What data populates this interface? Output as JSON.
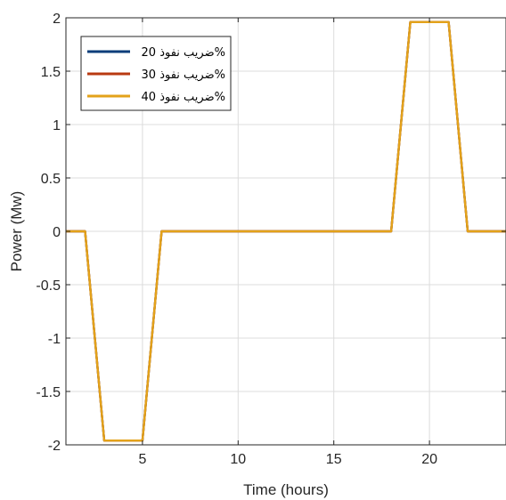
{
  "chart_data": {
    "type": "line",
    "title": "",
    "xlabel": "Time (hours)",
    "ylabel": "Power (Mw)",
    "xlim": [
      1,
      24
    ],
    "ylim": [
      -2,
      2
    ],
    "xticks": [
      5,
      10,
      15,
      20
    ],
    "xtick_labels": [
      "5",
      "10",
      "15",
      "20"
    ],
    "yticks": [
      -2,
      -1.5,
      -1,
      -0.5,
      0,
      0.5,
      1,
      1.5,
      2
    ],
    "ytick_labels": [
      "-2",
      "-1.5",
      "-1",
      "-0.5",
      "0",
      "0.5",
      "1",
      "1.5",
      "2"
    ],
    "grid": true,
    "legend_position": "top-left",
    "x": [
      1,
      2,
      3,
      4,
      5,
      6,
      7,
      8,
      9,
      10,
      11,
      12,
      13,
      14,
      15,
      16,
      17,
      18,
      19,
      20,
      21,
      22,
      23,
      24
    ],
    "series": [
      {
        "name": "ضريب نفوذ 20%",
        "color": "#0a3d7a",
        "values": [
          0,
          0,
          -1.96,
          -1.96,
          -1.96,
          0,
          0,
          0,
          0,
          0,
          0,
          0,
          0,
          0,
          0,
          0,
          0,
          0,
          1.96,
          1.96,
          1.96,
          0,
          0,
          0
        ]
      },
      {
        "name": "ضريب نفوذ 30%",
        "color": "#b83a12",
        "values": [
          0,
          0,
          -1.96,
          -1.96,
          -1.96,
          0,
          0,
          0,
          0,
          0,
          0,
          0,
          0,
          0,
          0,
          0,
          0,
          0,
          1.96,
          1.96,
          1.96,
          0,
          0,
          0
        ]
      },
      {
        "name": "ضريب نفوذ 40%",
        "color": "#e3a21a",
        "values": [
          0,
          0,
          -1.96,
          -1.96,
          -1.96,
          0,
          0,
          0,
          0,
          0,
          0,
          0,
          0,
          0,
          0,
          0,
          0,
          0,
          1.96,
          1.96,
          1.96,
          0,
          0,
          0
        ]
      }
    ]
  }
}
